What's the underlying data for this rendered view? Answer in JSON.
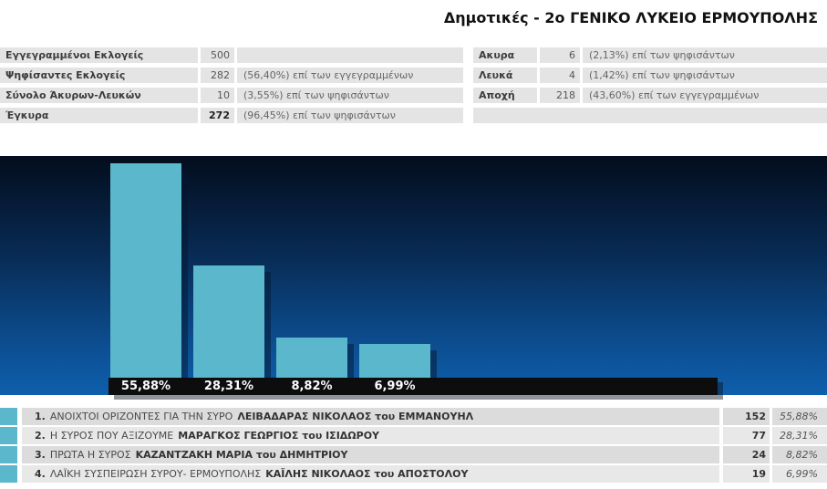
{
  "title": "Δημοτικές - 2ο ΓΕΝΙΚΟ ΛΥΚΕΙΟ ΕΡΜΟΥΠΟΛΗΣ",
  "summary_left": {
    "rows": [
      {
        "label": "Εγγεγραμμένοι Εκλογείς",
        "value": "500",
        "note": ""
      },
      {
        "label": "Ψηφίσαντες Εκλογείς",
        "value": "282",
        "note": "(56,40%) επί των εγγεγραμμένων"
      },
      {
        "label": "Σύνολο Άκυρων-Λευκών",
        "value": "10",
        "note": "(3,55%) επί των ψηφισάντων"
      },
      {
        "label": "Έγκυρα",
        "value": "272",
        "note": "(96,45%) επί των ψηφισάντων"
      }
    ]
  },
  "summary_right": {
    "rows": [
      {
        "label": "Ακυρα",
        "value": "6",
        "note": "(2,13%) επί των ψηφισάντων"
      },
      {
        "label": "Λευκά",
        "value": "4",
        "note": "(1,42%) επί των ψηφισάντων"
      },
      {
        "label": "Αποχή",
        "value": "218",
        "note": "(43,60%) επί των εγγεγραμμένων"
      }
    ]
  },
  "chart_data": {
    "type": "bar",
    "title": "",
    "categories": [
      "ΑΝΟΙΧΤΟΙ ΟΡΙΖΟΝΤΕΣ ΓΙΑ ΤΗΝ ΣΥΡΟ",
      "Η ΣΥΡΟΣ ΠΟΥ ΑΞΙΖΟΥΜΕ",
      "ΠΡΩΤΑ Η ΣΥΡΟΣ",
      "ΛΑΪΚΗ ΣΥΣΠΕΙΡΩΣΗ ΣΥΡΟΥ- ΕΡΜΟΥΠΟΛΗΣ"
    ],
    "values": [
      55.88,
      28.31,
      8.82,
      6.99
    ],
    "value_labels": [
      "55,88%",
      "28,31%",
      "8,82%",
      "6,99%"
    ],
    "votes": [
      152,
      77,
      24,
      19
    ],
    "xlabel": "",
    "ylabel": "",
    "ylim": [
      0,
      60
    ],
    "grid": false,
    "legend": false,
    "bar_color": "#5bb7cc",
    "strip_color": "#0d0d0d",
    "label_color": "#fcfcfc",
    "bg_gradient": [
      "#030d1d",
      "#082a52",
      "#0c4d8f",
      "#0e5fad"
    ]
  },
  "results": {
    "rows": [
      {
        "rank": "1.",
        "party": "ΑΝΟΙΧΤΟΙ ΟΡΙΖΟΝΤΕΣ ΓΙΑ ΤΗΝ ΣΥΡΟ",
        "candidate": "ΛΕΙΒΑΔΑΡΑΣ ΝΙΚΟΛΑΟΣ του ΕΜΜΑΝΟΥΗΛ",
        "votes": "152",
        "percent": "55,88%"
      },
      {
        "rank": "2.",
        "party": "Η ΣΥΡΟΣ ΠΟΥ ΑΞΙΖΟΥΜΕ",
        "candidate": "ΜΑΡΑΓΚΟΣ ΓΕΩΡΓΙΟΣ του ΙΣΙΔΩΡΟΥ",
        "votes": "77",
        "percent": "28,31%"
      },
      {
        "rank": "3.",
        "party": "ΠΡΩΤΑ Η ΣΥΡΟΣ",
        "candidate": "ΚΑΖΑΝΤΖΑΚΗ ΜΑΡΙΑ του ΔΗΜΗΤΡΙΟΥ",
        "votes": "24",
        "percent": "8,82%"
      },
      {
        "rank": "4.",
        "party": "ΛΑΪΚΗ ΣΥΣΠΕΙΡΩΣΗ ΣΥΡΟΥ- ΕΡΜΟΥΠΟΛΗΣ",
        "candidate": "ΚΑΪΛΗΣ ΝΙΚΟΛΑΟΣ του ΑΠΟΣΤΟΛΟΥ",
        "votes": "19",
        "percent": "6,99%"
      }
    ]
  }
}
